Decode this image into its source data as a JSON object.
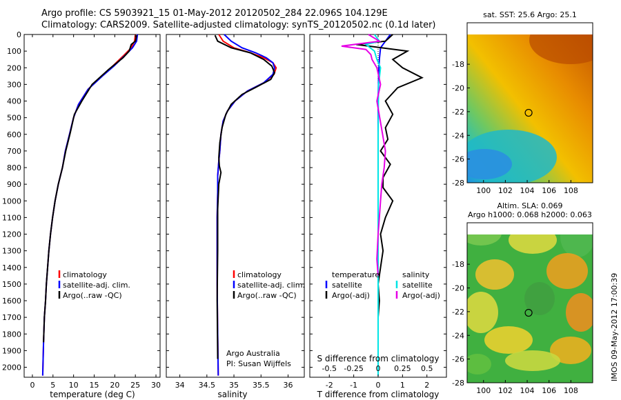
{
  "header": {
    "title_line1": "Argo profile: CS 5903921_15 01-May-2012 20120502_284 22.096S 104.129E",
    "title_line2": "Climatology: CARS2009. Satellite-adjusted climatology: synTS_20120502.nc (0.1d later)"
  },
  "footer": {
    "stamp": "IMOS 09-May-2012 17:00:39"
  },
  "colors": {
    "climatology": "#ff0000",
    "satellite": "#0000ff",
    "argo": "#000000",
    "salinity_satellite": "#00e5e5",
    "salinity_argo": "#e600e6"
  },
  "chart_data": [
    {
      "type": "line",
      "xlabel": "temperature (deg C)",
      "ylabel": "",
      "xlim": [
        -2,
        31
      ],
      "ylim": [
        2060,
        0
      ],
      "xticks": [
        0,
        5,
        10,
        15,
        20,
        25,
        30
      ],
      "yticks": [
        0,
        100,
        200,
        300,
        400,
        500,
        600,
        700,
        800,
        900,
        1000,
        1100,
        1200,
        1300,
        1400,
        1500,
        1600,
        1700,
        1800,
        1900,
        2000
      ],
      "legend": [
        "climatology",
        "satellite-adj. clim.",
        "Argo(..raw -QC)"
      ],
      "legend_position": "bottom-right",
      "series": [
        {
          "name": "climatology",
          "color": "#ff0000",
          "x": [
            25.0,
            24.8,
            24.0,
            22.0,
            19.5,
            16.8,
            13.5,
            11.2,
            10.0,
            9.0,
            8.0,
            7.3,
            6.3,
            5.5,
            4.9,
            4.4,
            4.0,
            3.7,
            3.4,
            3.2,
            2.9,
            2.7,
            2.5
          ],
          "y": [
            0,
            40,
            80,
            130,
            190,
            250,
            330,
            420,
            500,
            600,
            700,
            800,
            900,
            1000,
            1100,
            1200,
            1300,
            1400,
            1500,
            1600,
            1700,
            1850,
            2050
          ]
        },
        {
          "name": "satellite-adj. clim.",
          "color": "#0000ff",
          "x": [
            25.5,
            25.3,
            24.3,
            22.3,
            19.8,
            17.0,
            13.5,
            11.2,
            10.0,
            9.0,
            8.0,
            7.3,
            6.3,
            5.5,
            4.9,
            4.4,
            4.0,
            3.7,
            3.4,
            3.2,
            2.9,
            2.7,
            2.5
          ],
          "y": [
            0,
            40,
            80,
            130,
            190,
            250,
            330,
            420,
            500,
            600,
            700,
            800,
            900,
            1000,
            1100,
            1200,
            1300,
            1400,
            1500,
            1600,
            1700,
            1850,
            2050
          ]
        },
        {
          "name": "Argo(..raw -QC)",
          "color": "#000000",
          "x": [
            25.3,
            25.0,
            24.0,
            23.5,
            22.0,
            18.5,
            14.5,
            12.0,
            10.2,
            9.2,
            8.1,
            7.3,
            6.3,
            5.5,
            4.9,
            4.4,
            4.0,
            3.7,
            3.4,
            3.2,
            2.9,
            2.7
          ],
          "y": [
            5,
            40,
            60,
            100,
            140,
            210,
            300,
            400,
            480,
            590,
            700,
            800,
            900,
            1000,
            1100,
            1200,
            1300,
            1400,
            1500,
            1600,
            1700,
            1850
          ]
        }
      ]
    },
    {
      "type": "line",
      "xlabel": "salinity",
      "xlim": [
        33.75,
        36.3
      ],
      "ylim": [
        2060,
        0
      ],
      "xticks": [
        34,
        34.5,
        35,
        35.5,
        36
      ],
      "legend": [
        "climatology",
        "satellite-adj. clim.",
        "Argo(..raw -QC)"
      ],
      "legend_position": "bottom-right",
      "annotation": [
        "Argo Australia",
        "PI: Susan Wijffels"
      ],
      "series": [
        {
          "name": "climatology",
          "color": "#ff0000",
          "x": [
            34.72,
            34.8,
            35.0,
            35.3,
            35.55,
            35.72,
            35.78,
            35.74,
            35.55,
            35.25,
            35.02,
            34.88,
            34.8,
            34.76,
            34.74,
            34.72,
            34.7,
            34.7,
            34.69,
            34.69,
            34.69,
            34.7,
            34.71
          ],
          "y": [
            0,
            40,
            80,
            110,
            140,
            170,
            200,
            240,
            290,
            340,
            400,
            460,
            520,
            600,
            700,
            760,
            850,
            950,
            1100,
            1300,
            1500,
            1800,
            2050
          ]
        },
        {
          "name": "satellite-adj. clim.",
          "color": "#0000ff",
          "x": [
            34.82,
            34.95,
            35.15,
            35.4,
            35.6,
            35.72,
            35.75,
            35.72,
            35.55,
            35.25,
            35.02,
            34.88,
            34.8,
            34.76,
            34.74,
            34.72,
            34.7,
            34.7,
            34.69,
            34.69,
            34.69,
            34.7,
            34.71
          ],
          "y": [
            0,
            40,
            80,
            110,
            140,
            170,
            200,
            240,
            290,
            340,
            400,
            460,
            520,
            600,
            700,
            760,
            850,
            950,
            1100,
            1300,
            1500,
            1800,
            2050
          ]
        },
        {
          "name": "Argo(..raw -QC)",
          "color": "#000000",
          "x": [
            34.65,
            34.7,
            34.95,
            35.3,
            35.55,
            35.7,
            35.75,
            35.68,
            35.45,
            35.15,
            34.95,
            34.85,
            34.78,
            34.74,
            34.72,
            34.73,
            34.76,
            34.72,
            34.7,
            34.7,
            34.69,
            34.7
          ],
          "y": [
            5,
            40,
            80,
            110,
            150,
            190,
            230,
            270,
            310,
            360,
            420,
            480,
            560,
            650,
            740,
            790,
            830,
            900,
            1050,
            1300,
            1600,
            1950
          ]
        }
      ]
    },
    {
      "type": "line",
      "xlabel_bottom": "T difference from climatology",
      "xlabel_top": "S difference from climatology",
      "xlim": [
        -2.8,
        2.8
      ],
      "ylim": [
        2060,
        0
      ],
      "xticks_T": [
        -2,
        -1,
        0,
        1,
        2
      ],
      "xticks_S": [
        -0.5,
        -0.25,
        0,
        0.25,
        0.5
      ],
      "legend": [
        "temperature",
        "satellite",
        "Argo(-adj)",
        "salinity",
        "satellite",
        "Argo(-adj)"
      ],
      "legend_position": "bottom-center",
      "series": [
        {
          "name": "satellite",
          "color": "#0000ff",
          "x": [
            0.5,
            0.3,
            0.1,
            0.05,
            0.02,
            0,
            0,
            0,
            0,
            0,
            0,
            0,
            0
          ],
          "y": [
            0,
            40,
            80,
            150,
            250,
            400,
            600,
            800,
            1000,
            1300,
            1500,
            1800,
            2050
          ]
        },
        {
          "name": "Argo(-adj)",
          "color": "#000000",
          "x": [
            0.6,
            0.3,
            -0.9,
            1.2,
            0.6,
            1.0,
            1.8,
            0.8,
            0.3,
            0.6,
            0.3,
            0.4,
            0.1,
            0.5,
            0.2,
            0.2,
            0.6,
            0.3,
            0.1,
            0.2,
            0.1,
            0,
            0.05,
            0
          ],
          "y": [
            0,
            40,
            60,
            100,
            150,
            200,
            260,
            320,
            400,
            480,
            560,
            630,
            700,
            780,
            860,
            920,
            1000,
            1100,
            1200,
            1300,
            1400,
            1500,
            1600,
            1700
          ]
        },
        {
          "name": "satellite",
          "color": "#00e5e5",
          "x": [
            -0.15,
            0.05,
            -0.5,
            -0.15,
            -0.05,
            0.1,
            0.02,
            0.01,
            0,
            0,
            0,
            0
          ],
          "y": [
            0,
            40,
            60,
            100,
            150,
            200,
            300,
            400,
            600,
            900,
            1300,
            2050
          ]
        },
        {
          "name": "Argo(-adj)",
          "color": "#e600e6",
          "x": [
            -0.4,
            0.05,
            -1.5,
            -0.5,
            -0.3,
            -0.25,
            -0.05,
            0.1,
            -0.05,
            0.3,
            0.25,
            0.15,
            0.1,
            0.05,
            0,
            -0.05,
            0
          ],
          "y": [
            0,
            40,
            70,
            90,
            120,
            150,
            200,
            300,
            400,
            700,
            800,
            900,
            1000,
            1100,
            1200,
            1350,
            1450
          ]
        }
      ]
    },
    {
      "type": "heatmap",
      "title": "sat. SST: 25.6  Argo: 25.1",
      "xlim": [
        98.5,
        110
      ],
      "ylim": [
        -28,
        -14.5
      ],
      "xticks": [
        100,
        102,
        104,
        106,
        108
      ],
      "yticks": [
        -18,
        -20,
        -22,
        -24,
        -26,
        -28
      ],
      "marker": {
        "lon": 104.129,
        "lat": -22.096
      }
    },
    {
      "type": "heatmap",
      "title_line1": "Altim. SLA: 0.069",
      "title_line2": "Argo h1000: 0.068 h2000: 0.063",
      "xlim": [
        98.5,
        110
      ],
      "ylim": [
        -28,
        -14.5
      ],
      "xticks": [
        100,
        102,
        104,
        106,
        108
      ],
      "yticks": [
        -18,
        -20,
        -22,
        -24,
        -26,
        -28
      ],
      "marker": {
        "lon": 104.129,
        "lat": -22.096
      }
    }
  ]
}
